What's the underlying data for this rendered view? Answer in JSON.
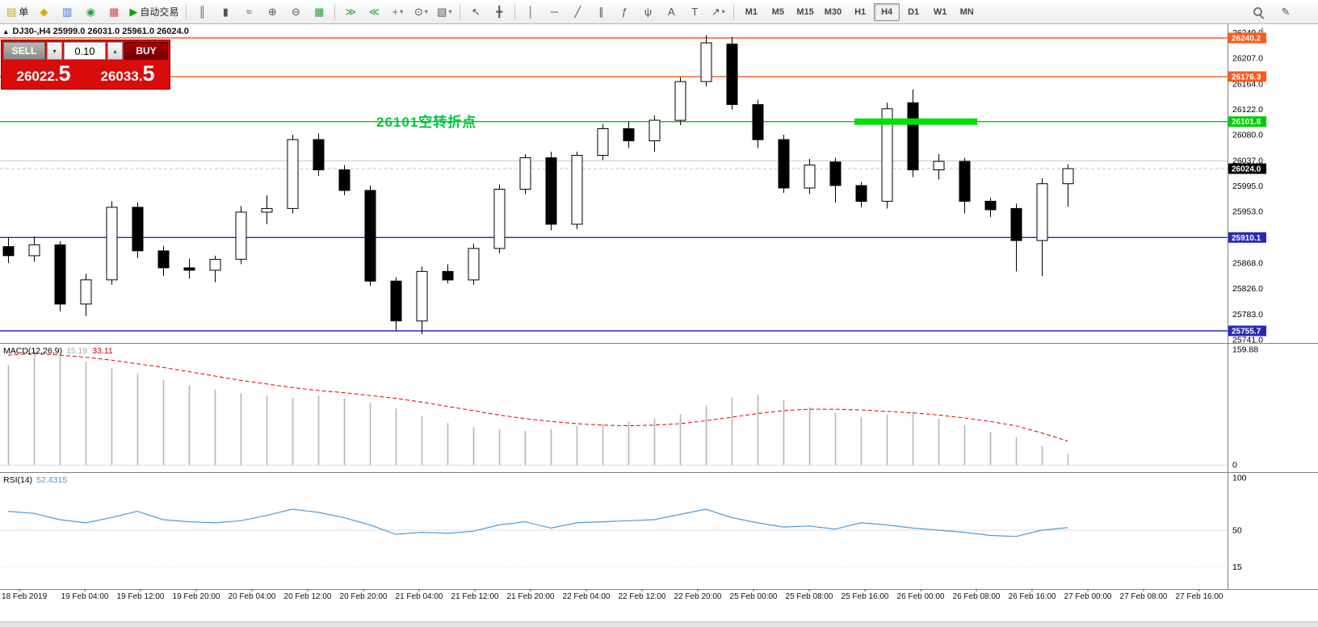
{
  "toolbar": {
    "groups": [
      {
        "items": [
          {
            "name": "new-order-button",
            "glyph": "▤",
            "glyph_color": "#d4a017",
            "label": "单"
          }
        ]
      },
      {
        "items": [
          {
            "name": "expert-advisors-icon",
            "glyph": "◆",
            "glyph_color": "#e0a800"
          },
          {
            "name": "market-watch-icon",
            "glyph": "▥",
            "glyph_color": "#3a6fd8"
          },
          {
            "name": "data-window-icon",
            "glyph": "◉",
            "glyph_color": "#27a02c"
          },
          {
            "name": "navigator-icon",
            "glyph": "▦",
            "glyph_color": "#cf4a2f"
          },
          {
            "name": "auto-trading-button",
            "glyph": "▶",
            "glyph_color": "#0aa30a",
            "label": "自动交易"
          }
        ]
      },
      {
        "type": "sep"
      },
      {
        "items": [
          {
            "name": "ohlc-bars-icon",
            "glyph": "║"
          },
          {
            "name": "candlestick-icon",
            "glyph": "▮"
          },
          {
            "name": "line-chart-icon",
            "glyph": "≈"
          }
        ]
      },
      {
        "items": [
          {
            "name": "zoom-in-icon",
            "glyph": "⊕"
          },
          {
            "name": "zoom-out-icon",
            "glyph": "⊖"
          },
          {
            "name": "tile-windows-icon",
            "glyph": "▦",
            "glyph_color": "#27a02c"
          }
        ]
      },
      {
        "type": "sep"
      },
      {
        "items": [
          {
            "name": "auto-scroll-icon",
            "glyph": "≫",
            "glyph_color": "#27a02c"
          },
          {
            "name": "chart-shift-icon",
            "glyph": "≪",
            "glyph_color": "#27a02c"
          }
        ]
      },
      {
        "items": [
          {
            "name": "new-chart-icon",
            "glyph": "+",
            "glyph_color": "#27a02c",
            "caret": true
          },
          {
            "name": "periods-icon",
            "glyph": "⊙",
            "caret": true
          },
          {
            "name": "templates-icon",
            "glyph": "▧",
            "caret": true
          }
        ]
      },
      {
        "type": "sep"
      },
      {
        "items": [
          {
            "name": "cursor-icon",
            "glyph": "↖"
          },
          {
            "name": "crosshair-icon",
            "glyph": "╋"
          }
        ]
      },
      {
        "type": "sep"
      },
      {
        "items": [
          {
            "name": "vertical-line-icon",
            "glyph": "│"
          },
          {
            "name": "horizontal-line-icon",
            "glyph": "─"
          },
          {
            "name": "trendline-icon",
            "glyph": "╱"
          },
          {
            "name": "equidistant-channel-icon",
            "glyph": "∥"
          },
          {
            "name": "fibonacci-icon",
            "glyph": "ƒ"
          },
          {
            "name": "andrews-pitchfork-icon",
            "glyph": "ψ"
          },
          {
            "name": "text-icon",
            "glyph": "A"
          },
          {
            "name": "text-label-icon",
            "glyph": "T"
          },
          {
            "name": "arrows-icon",
            "glyph": "↗",
            "caret": true
          }
        ]
      },
      {
        "type": "sep"
      }
    ],
    "timeframes": [
      "M1",
      "M5",
      "M15",
      "M30",
      "H1",
      "H4",
      "D1",
      "W1",
      "MN"
    ],
    "active_timeframe": "H4",
    "right_items": [
      {
        "name": "search-icon",
        "shape": "magnifier"
      },
      {
        "name": "edit-icon",
        "glyph": "✎"
      }
    ]
  },
  "icons": {
    "one_click_toggle": "▴",
    "spin_down": "▾",
    "spin_up": "▴",
    "caret_down": "▾",
    "scroll_up": "˄"
  },
  "chart": {
    "symbol": "DJ30-",
    "period": "H4",
    "title_line": "DJ30-,H4 25999.0 26031.0 25961.0 26024.0",
    "ohlc": {
      "open": "25999.0",
      "high": "26031.0",
      "low": "25961.0",
      "close": "26024.0"
    },
    "annotation": {
      "text": "26101空转折点",
      "color": "#00c83c"
    }
  },
  "trade_panel": {
    "sell_label": "SELL",
    "buy_label": "BUY",
    "volume": "0.10",
    "sell_price_main": "26022.",
    "sell_price_big": "5",
    "buy_price_main": "26033.",
    "buy_price_big": "5",
    "bg_color": "#d90b0b"
  },
  "chart_data": {
    "type": "candlestick",
    "symbol": "DJ30-",
    "timeframe": "H4",
    "price_axis_range": [
      25741.0,
      26249.0
    ],
    "y_axis_ticks": [
      26249.0,
      26207.0,
      26164.0,
      26122.0,
      26080.0,
      26037.0,
      25995.0,
      25953.0,
      25868.0,
      25826.0,
      25783.0,
      25741.0
    ],
    "levels": [
      {
        "price": 26240.2,
        "color": "#ff5a1a",
        "label": "26240.2"
      },
      {
        "price": 26176.3,
        "color": "#ff5a1a",
        "label": "26176.3"
      },
      {
        "price": 26101.8,
        "color": "#00cc00",
        "label": "26101.8"
      },
      {
        "price": 26037.0,
        "color": "#c8c8c8",
        "label": null
      },
      {
        "price": 25910.1,
        "color": "#2929b8",
        "label": "25910.1"
      },
      {
        "price": 25755.7,
        "color": "#2929b8",
        "label": "25755.7"
      }
    ],
    "current_price": {
      "value": 26024.0,
      "label": "26024.0"
    },
    "highlight_segment": {
      "start_index": 33,
      "end_index": 37,
      "price": 26101.8,
      "color": "#00e000"
    },
    "candles": [
      [
        25895,
        25910,
        25868,
        25880
      ],
      [
        25880,
        25912,
        25870,
        25898
      ],
      [
        25898,
        25904,
        25788,
        25800
      ],
      [
        25800,
        25850,
        25780,
        25840
      ],
      [
        25840,
        25970,
        25832,
        25960
      ],
      [
        25960,
        25968,
        25876,
        25888
      ],
      [
        25888,
        25896,
        25846,
        25860
      ],
      [
        25860,
        25875,
        25842,
        25856
      ],
      [
        25856,
        25880,
        25836,
        25874
      ],
      [
        25874,
        25962,
        25866,
        25952
      ],
      [
        25952,
        25980,
        25932,
        25958
      ],
      [
        25958,
        26080,
        25950,
        26072
      ],
      [
        26072,
        26082,
        26012,
        26022
      ],
      [
        26022,
        26030,
        25980,
        25988
      ],
      [
        25988,
        25996,
        25830,
        25838
      ],
      [
        25838,
        25844,
        25756,
        25772
      ],
      [
        25772,
        25862,
        25750,
        25854
      ],
      [
        25854,
        25866,
        25834,
        25840
      ],
      [
        25840,
        25900,
        25832,
        25892
      ],
      [
        25892,
        25998,
        25884,
        25990
      ],
      [
        25990,
        26048,
        25982,
        26042
      ],
      [
        26042,
        26052,
        25922,
        25932
      ],
      [
        25932,
        26052,
        25924,
        26046
      ],
      [
        26046,
        26098,
        26038,
        26090
      ],
      [
        26090,
        26102,
        26058,
        26070
      ],
      [
        26070,
        26112,
        26052,
        26104
      ],
      [
        26104,
        26175,
        26096,
        26168
      ],
      [
        26168,
        26245,
        26160,
        26232
      ],
      [
        26230,
        26242,
        26122,
        26130
      ],
      [
        26130,
        26138,
        26058,
        26072
      ],
      [
        26072,
        26080,
        25984,
        25992
      ],
      [
        25992,
        26040,
        25982,
        26030
      ],
      [
        26035,
        26042,
        25968,
        25996
      ],
      [
        25996,
        26002,
        25960,
        25970
      ],
      [
        25970,
        26133,
        25958,
        26123
      ],
      [
        26133,
        26155,
        26010,
        26022
      ],
      [
        26022,
        26048,
        26006,
        26036
      ],
      [
        26036,
        26042,
        25950,
        25970
      ],
      [
        25970,
        25976,
        25944,
        25956
      ],
      [
        25958,
        25966,
        25854,
        25905
      ],
      [
        25905,
        26008,
        25846,
        25999
      ],
      [
        25999,
        26031,
        25961,
        26024
      ]
    ],
    "time_labels": [
      "18 Feb 2019",
      "19 Feb 04:00",
      "19 Feb 12:00",
      "19 Feb 20:00",
      "20 Feb 04:00",
      "20 Feb 12:00",
      "20 Feb 20:00",
      "21 Feb 04:00",
      "21 Feb 12:00",
      "21 Feb 20:00",
      "22 Feb 04:00",
      "22 Feb 12:00",
      "22 Feb 20:00",
      "25 Feb 00:00",
      "25 Feb 08:00",
      "25 Feb 16:00",
      "26 Feb 00:00",
      "26 Feb 08:00",
      "26 Feb 16:00",
      "27 Feb 00:00",
      "27 Feb 08:00",
      "27 Feb 16:00"
    ],
    "macd": {
      "label": "MACD(12,26,9)",
      "value": "15.19",
      "signal_value": "33.11",
      "axis_ticks": [
        [
          159.88,
          "159.88"
        ],
        [
          0,
          "0"
        ]
      ],
      "histogram": [
        138,
        160,
        152,
        143,
        134,
        126,
        118,
        110,
        104,
        99,
        95,
        93,
        96,
        92,
        86,
        78,
        68,
        58,
        52,
        49,
        47,
        50,
        54,
        57,
        60,
        64,
        70,
        82,
        93,
        97,
        90,
        80,
        72,
        66,
        70,
        74,
        64,
        55,
        46,
        38,
        26,
        15
      ],
      "signal": [
        152,
        154,
        152,
        149,
        145,
        140,
        135,
        129,
        123,
        117,
        112,
        107,
        103,
        100,
        96,
        92,
        87,
        81,
        75,
        69,
        64,
        60,
        57,
        55,
        54,
        55,
        57,
        61,
        66,
        71,
        75,
        77,
        77,
        76,
        74,
        72,
        69,
        65,
        60,
        54,
        44,
        33
      ]
    },
    "rsi": {
      "label": "RSI(14)",
      "value": "52.4315",
      "axis_ticks": [
        [
          100,
          "100"
        ],
        [
          50,
          "50"
        ],
        [
          15,
          "15"
        ]
      ],
      "values": [
        68,
        66,
        60,
        57,
        62,
        68,
        60,
        58,
        57,
        59,
        64,
        70,
        67,
        62,
        55,
        46,
        48,
        47,
        49,
        55,
        58,
        52,
        57,
        58,
        59,
        60,
        65,
        70,
        62,
        57,
        53,
        54,
        51,
        57,
        55,
        52,
        50,
        48,
        45,
        44,
        50,
        52.4
      ]
    }
  }
}
